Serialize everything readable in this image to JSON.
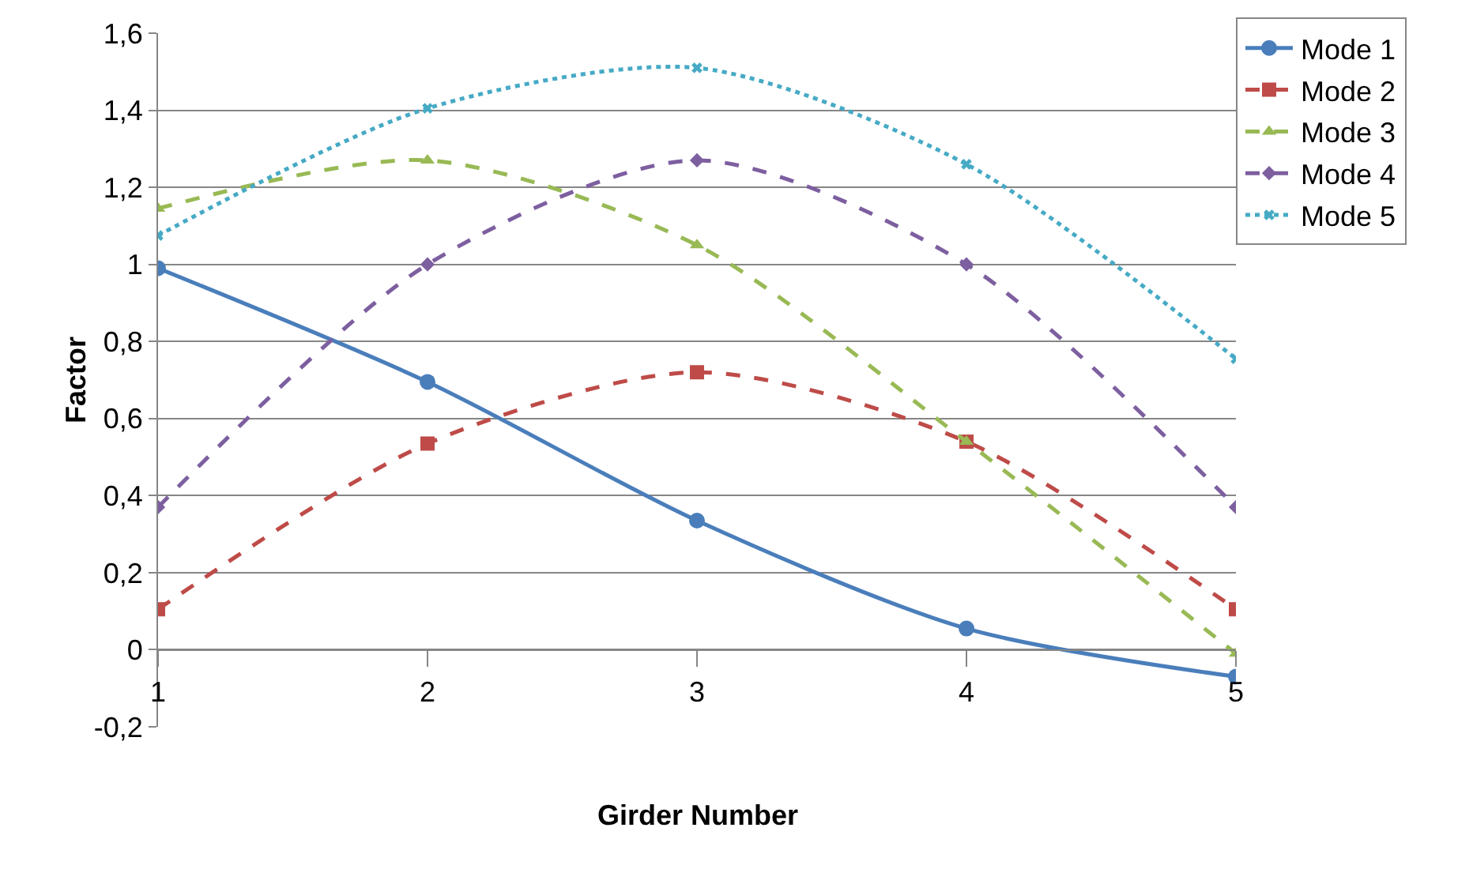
{
  "chart_data": {
    "type": "line",
    "xlabel": "Girder Number",
    "ylabel": "Factor",
    "x": [
      1,
      2,
      3,
      4,
      5
    ],
    "series": [
      {
        "name": "Mode 1",
        "color": "#4a7ebb",
        "marker": "circle",
        "line_style": "solid",
        "values": [
          0.99,
          0.695,
          0.335,
          0.055,
          -0.07
        ]
      },
      {
        "name": "Mode 2",
        "color": "#be4b48",
        "marker": "square",
        "line_style": "dashed",
        "values": [
          0.105,
          0.535,
          0.72,
          0.54,
          0.105
        ]
      },
      {
        "name": "Mode 3",
        "color": "#98b954",
        "marker": "triangle",
        "line_style": "dashed",
        "values": [
          1.145,
          1.27,
          1.05,
          0.54,
          -0.01
        ]
      },
      {
        "name": "Mode 4",
        "color": "#7d5fa0",
        "marker": "diamond",
        "line_style": "dashed",
        "values": [
          0.37,
          1.0,
          1.27,
          1.0,
          0.37
        ]
      },
      {
        "name": "Mode 5",
        "color": "#46aac5",
        "marker": "cross",
        "line_style": "dotted",
        "values": [
          1.075,
          1.405,
          1.51,
          1.26,
          0.755
        ]
      }
    ],
    "xlim": [
      1,
      5
    ],
    "xticks": [
      1,
      2,
      3,
      4,
      5
    ],
    "ylim": [
      -0.2,
      1.6
    ],
    "yticks": [
      {
        "value": -0.2,
        "label": "-0,2"
      },
      0,
      {
        "value": 0.2,
        "label": "0,2"
      },
      {
        "value": 0.4,
        "label": "0,4"
      },
      {
        "value": 0.6,
        "label": "0,6"
      },
      {
        "value": 0.8,
        "label": "0,8"
      },
      1,
      {
        "value": 1.2,
        "label": "1,2"
      },
      {
        "value": 1.4,
        "label": "1,4"
      },
      {
        "value": 1.6,
        "label": "1,6"
      }
    ],
    "grid": "y",
    "legend": "top right"
  }
}
